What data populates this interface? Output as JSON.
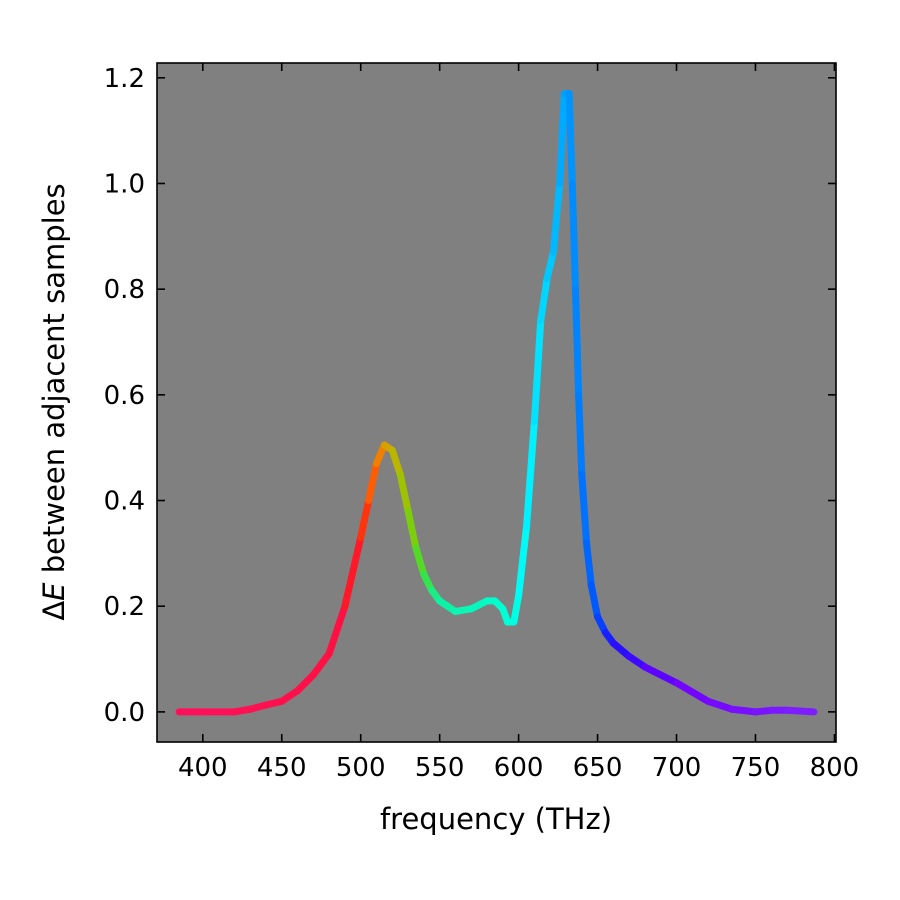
{
  "chart_data": {
    "type": "line",
    "title": "",
    "xlabel": "frequency (THz)",
    "ylabel_prefix": "Δ",
    "ylabel_italic": "E",
    "ylabel_suffix": " between adjacent samples",
    "xlim": [
      371,
      801
    ],
    "ylim": [
      -0.057,
      1.228
    ],
    "xticks": [
      400,
      450,
      500,
      550,
      600,
      650,
      700,
      750,
      800
    ],
    "xtick_labels": [
      "400",
      "450",
      "500",
      "550",
      "600",
      "650",
      "700",
      "750",
      "800"
    ],
    "yticks": [
      0.0,
      0.2,
      0.4,
      0.6,
      0.8,
      1.0,
      1.2
    ],
    "ytick_labels": [
      "0.0",
      "0.2",
      "0.4",
      "0.6",
      "0.8",
      "1.0",
      "1.2"
    ],
    "grid": false,
    "background_color": "#808080",
    "line_color_by_frequency": [
      [
        385,
        "#ff1060"
      ],
      [
        490,
        "#ff1040"
      ],
      [
        500,
        "#ff2010"
      ],
      [
        510,
        "#ff7000"
      ],
      [
        520,
        "#c8b000"
      ],
      [
        530,
        "#90c800"
      ],
      [
        540,
        "#40e030"
      ],
      [
        550,
        "#10f0a0"
      ],
      [
        595,
        "#00ffd8"
      ],
      [
        605,
        "#00f8ff"
      ],
      [
        618,
        "#00d0ff"
      ],
      [
        630,
        "#00a0ff"
      ],
      [
        640,
        "#0078ff"
      ],
      [
        650,
        "#0050ff"
      ],
      [
        660,
        "#2010ff"
      ],
      [
        700,
        "#7000ff"
      ],
      [
        787,
        "#8020ff"
      ]
    ],
    "series": [
      {
        "x": [
          385,
          400,
          420,
          430,
          440,
          450,
          460,
          470,
          480,
          490,
          500,
          505,
          510,
          515,
          520,
          525,
          530,
          535,
          540,
          545,
          550,
          560,
          570,
          580,
          585,
          590,
          593,
          597,
          600,
          605,
          610,
          614,
          618,
          622,
          626,
          629,
          632,
          634,
          636,
          638,
          640,
          643,
          646,
          650,
          655,
          660,
          670,
          680,
          700,
          720,
          735,
          750,
          760,
          770,
          787
        ],
        "y": [
          0.0,
          0.0,
          0.0,
          0.005,
          0.013,
          0.02,
          0.04,
          0.07,
          0.11,
          0.2,
          0.33,
          0.4,
          0.47,
          0.505,
          0.495,
          0.45,
          0.38,
          0.31,
          0.26,
          0.23,
          0.21,
          0.19,
          0.195,
          0.21,
          0.21,
          0.195,
          0.17,
          0.17,
          0.22,
          0.35,
          0.55,
          0.74,
          0.82,
          0.87,
          1.0,
          1.17,
          1.17,
          1.0,
          0.8,
          0.6,
          0.45,
          0.32,
          0.24,
          0.18,
          0.15,
          0.13,
          0.105,
          0.085,
          0.055,
          0.02,
          0.005,
          0.0,
          0.003,
          0.003,
          0.0
        ]
      }
    ]
  }
}
